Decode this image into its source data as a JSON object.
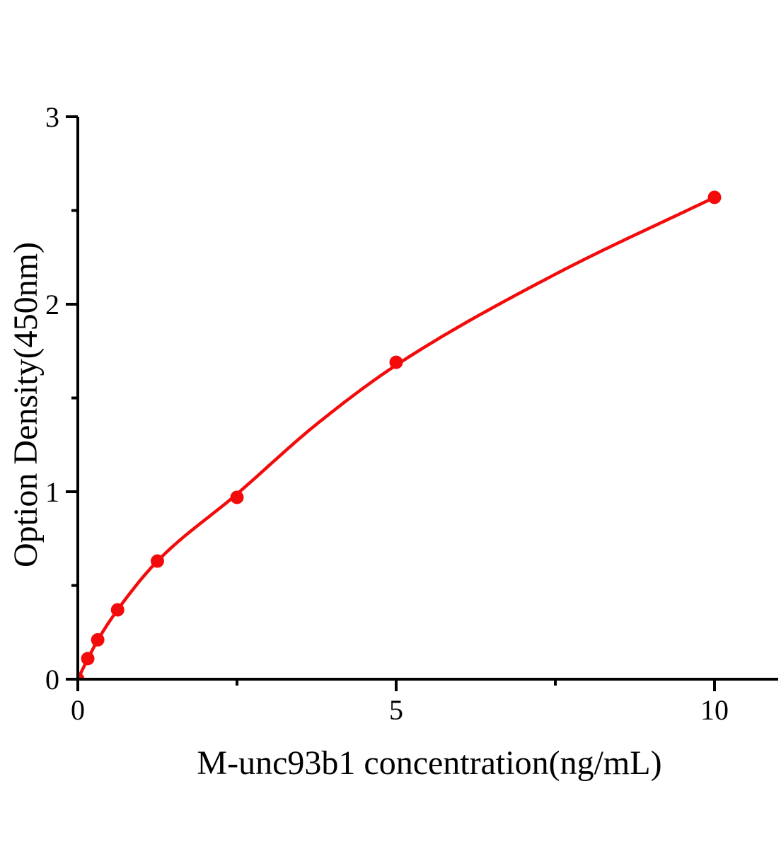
{
  "figure": {
    "background": "#ffffff",
    "axis_color": "#000000",
    "series_color": "#f30b0b"
  },
  "chart_data": {
    "type": "scatter",
    "title": "",
    "xlabel": "M-unc93b1 concentration(ng/mL)",
    "ylabel": "Option Density(450nm)",
    "xlim": [
      0,
      11
    ],
    "ylim": [
      0,
      3
    ],
    "x_major_ticks": [
      0,
      5,
      10
    ],
    "x_minor_ticks": [
      2.5,
      7.5
    ],
    "y_major_ticks": [
      0,
      1,
      2,
      3
    ],
    "y_minor_ticks": [
      0.5,
      1.5,
      2.5
    ],
    "grid": false,
    "legend": false,
    "series": [
      {
        "marker": "circle",
        "color": "#f30b0b",
        "x": [
          0,
          0.156,
          0.3125,
          0.625,
          1.25,
          2.5,
          5,
          10
        ],
        "y": [
          0,
          0.11,
          0.21,
          0.37,
          0.63,
          0.97,
          1.69,
          2.57
        ]
      }
    ],
    "fit_curve": {
      "color": "#f30b0b",
      "x": [
        0,
        0.156,
        0.3125,
        0.625,
        1.25,
        2.5,
        3.75,
        5,
        7.5,
        10
      ],
      "y": [
        0,
        0.108,
        0.208,
        0.37,
        0.63,
        0.988,
        1.36,
        1.675,
        2.16,
        2.57
      ]
    }
  }
}
